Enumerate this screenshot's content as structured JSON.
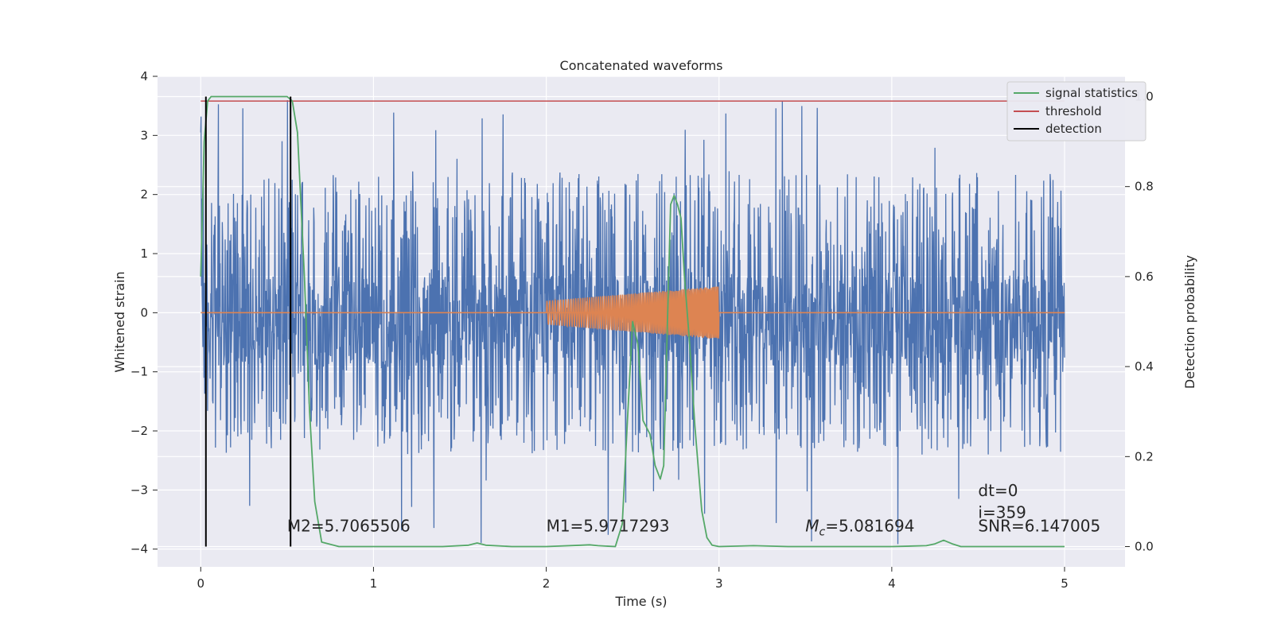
{
  "chart_data": {
    "type": "line",
    "title": "Concatenated waveforms",
    "xlabel": "Time (s)",
    "ylabel_left": "Whitened strain",
    "ylabel_right": "Detection probability",
    "xlim": [
      -0.25,
      5.35
    ],
    "ylim_left": [
      -4.3,
      4.0
    ],
    "ylim_right": [
      -0.045,
      1.045
    ],
    "x_ticks": [
      0,
      1,
      2,
      3,
      4,
      5
    ],
    "x_tick_labels": [
      "0",
      "1",
      "2",
      "3",
      "4",
      "5"
    ],
    "y_left_ticks": [
      -4,
      -3,
      -2,
      -1,
      0,
      1,
      2,
      3,
      4
    ],
    "y_left_tick_labels": [
      "−4",
      "−3",
      "−2",
      "−1",
      "0",
      "1",
      "2",
      "3",
      "4"
    ],
    "y_right_ticks": [
      0.0,
      0.2,
      0.4,
      0.6,
      0.8,
      1.0
    ],
    "y_right_tick_labels": [
      "0.0",
      "0.2",
      "0.4",
      "0.6",
      "0.8",
      "1.0"
    ],
    "grid": true,
    "legend_position": "top-right",
    "colors": {
      "strain": "#4c72b0",
      "template": "#dd8452",
      "signal_statistics": "#55a868",
      "threshold": "#c44e52",
      "detection": "#000000",
      "background": "#eaeaf2"
    },
    "series": [
      {
        "name": "signal statistics",
        "axis": "right",
        "x": [
          0.0,
          0.02,
          0.04,
          0.06,
          0.1,
          0.2,
          0.3,
          0.4,
          0.5,
          0.53,
          0.56,
          0.6,
          0.63,
          0.66,
          0.7,
          0.8,
          1.0,
          1.2,
          1.4,
          1.55,
          1.6,
          1.65,
          1.8,
          2.0,
          2.2,
          2.25,
          2.3,
          2.4,
          2.44,
          2.47,
          2.5,
          2.53,
          2.56,
          2.6,
          2.63,
          2.66,
          2.68,
          2.7,
          2.72,
          2.74,
          2.76,
          2.78,
          2.8,
          2.83,
          2.86,
          2.9,
          2.93,
          2.96,
          3.0,
          3.2,
          3.4,
          3.6,
          3.8,
          4.0,
          4.2,
          4.25,
          4.3,
          4.35,
          4.4,
          4.6,
          4.8,
          5.0
        ],
        "values": [
          0.6,
          0.9,
          0.99,
          1.0,
          1.0,
          1.0,
          1.0,
          1.0,
          1.0,
          0.99,
          0.92,
          0.6,
          0.3,
          0.1,
          0.01,
          0.0,
          0.0,
          0.0,
          0.0,
          0.003,
          0.008,
          0.003,
          0.0,
          0.0,
          0.003,
          0.004,
          0.002,
          0.0,
          0.05,
          0.28,
          0.5,
          0.45,
          0.28,
          0.25,
          0.18,
          0.15,
          0.18,
          0.48,
          0.76,
          0.78,
          0.76,
          0.73,
          0.6,
          0.45,
          0.27,
          0.08,
          0.02,
          0.003,
          0.0,
          0.002,
          0.0,
          0.0,
          0.0,
          0.0,
          0.002,
          0.006,
          0.014,
          0.006,
          0.0,
          0.0,
          0.0,
          0.0
        ]
      },
      {
        "name": "threshold",
        "axis": "right",
        "x": [
          0.0,
          5.0
        ],
        "values": [
          0.99,
          0.99
        ]
      },
      {
        "name": "detection",
        "axis": "right",
        "vlines": [
          0.03,
          0.52
        ],
        "from": 0.0,
        "to": 1.0
      }
    ],
    "whitened_strain": {
      "axis": "left",
      "x_range": [
        0.0,
        5.0
      ],
      "core_band": [
        -0.9,
        0.63
      ],
      "typical_peak": 2.0,
      "max": 3.68,
      "min": -3.92
    },
    "template_waveform": {
      "axis": "left",
      "x_range": [
        2.0,
        3.0
      ],
      "amplitude_start": 0.2,
      "amplitude_end": 0.45,
      "baseline": 0.0
    },
    "annotations": [
      {
        "text": "M2=5.7065506",
        "x": 0.5,
        "y": -3.7
      },
      {
        "text": "M1=5.9717293",
        "x": 2.0,
        "y": -3.7
      },
      {
        "text_prefix": "M",
        "text_sub": "c",
        "text_suffix": "=5.081694",
        "x": 3.5,
        "y": -3.7
      },
      {
        "text": "dt=0",
        "x": 4.5,
        "y": -3.1
      },
      {
        "text": "i=359",
        "x": 4.5,
        "y": -3.47
      },
      {
        "text": "SNR=6.147005",
        "x": 4.5,
        "y": -3.7
      }
    ]
  }
}
